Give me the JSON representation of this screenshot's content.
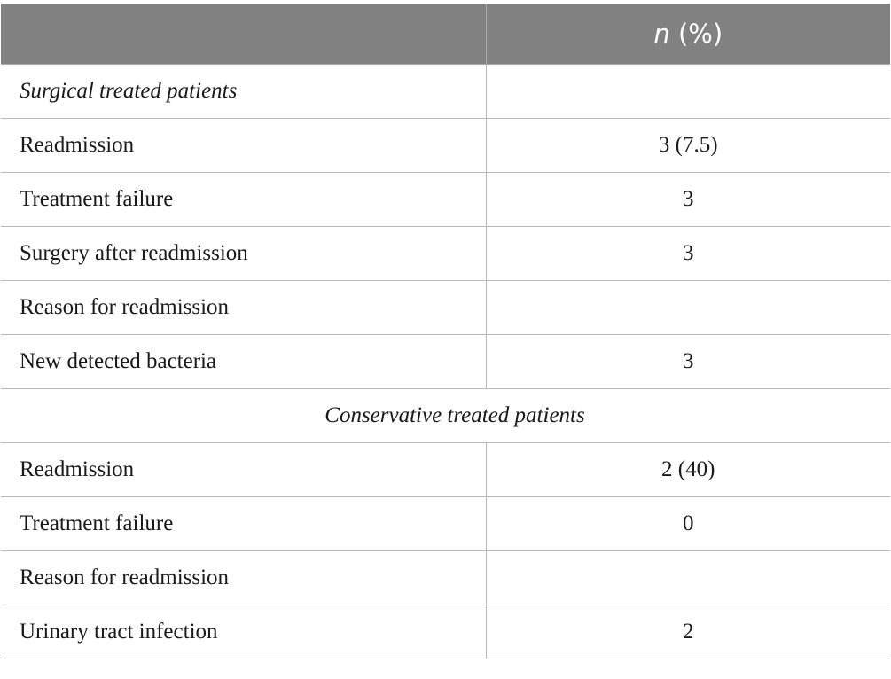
{
  "table": {
    "header": {
      "col1": "",
      "col2_italic": "n",
      "col2_rest": " (%)"
    },
    "rows": [
      {
        "label": "Surgical treated patients",
        "value": "",
        "kind": "section"
      },
      {
        "label": "Readmission",
        "value": "3 (7.5)",
        "kind": "row"
      },
      {
        "label": "Treatment failure",
        "value": "3",
        "kind": "row"
      },
      {
        "label": "Surgery after readmission",
        "value": "3",
        "kind": "row"
      },
      {
        "label": "Reason for readmission",
        "value": "",
        "kind": "row"
      },
      {
        "label": "New detected bacteria",
        "value": "3",
        "kind": "row"
      },
      {
        "label": "Conservative treated patients",
        "value": "",
        "kind": "section-full"
      },
      {
        "label": "Readmission",
        "value": "2 (40)",
        "kind": "row"
      },
      {
        "label": "Treatment failure",
        "value": "0",
        "kind": "row"
      },
      {
        "label": "Reason for readmission",
        "value": "",
        "kind": "row"
      },
      {
        "label": "Urinary tract infection",
        "value": "2",
        "kind": "row"
      }
    ]
  }
}
